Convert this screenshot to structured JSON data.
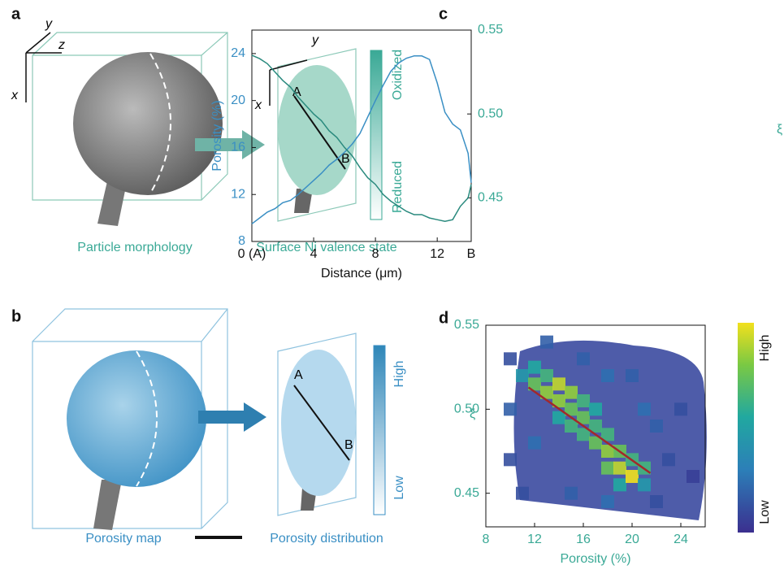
{
  "panels": {
    "a": {
      "label": "a",
      "box_axes": [
        "y",
        "z",
        "x"
      ],
      "plane_axes": [
        "y",
        "x"
      ],
      "points": [
        "A",
        "B"
      ],
      "scale": [
        "Oxidized",
        "Reduced"
      ],
      "captions": [
        "Particle morphology",
        "Surface Ni valence state"
      ]
    },
    "b": {
      "label": "b",
      "points": [
        "A",
        "B"
      ],
      "scale": [
        "High",
        "Low"
      ],
      "captions": [
        "Porosity map",
        "Porosity distribution"
      ]
    },
    "c": {
      "label": "c"
    },
    "d": {
      "label": "d"
    }
  },
  "chart_data": [
    {
      "type": "line",
      "xlabel": "Distance (μm)",
      "ylabel": "Porosity (%)",
      "y2label": "ξ",
      "x": [
        0,
        0.5,
        1,
        1.5,
        2,
        2.5,
        3,
        3.5,
        4,
        4.5,
        5,
        5.5,
        6,
        6.5,
        7,
        7.5,
        8,
        8.5,
        9,
        9.5,
        10,
        10.5,
        11,
        11.5,
        12,
        12.5,
        13,
        13.5,
        14,
        14.2
      ],
      "xlim": [
        0,
        14.2
      ],
      "xticks": [
        {
          "value": 0,
          "label": "0 (A)"
        },
        4,
        8,
        12,
        {
          "value": 14.2,
          "label": "B"
        }
      ],
      "ylim": [
        8,
        26
      ],
      "yticks": [
        8,
        12,
        16,
        20,
        24
      ],
      "y2lim": [
        0.424,
        0.55
      ],
      "y2ticks": [
        0.45,
        {
          "value": 0.5,
          "label": "0.50"
        },
        0.55
      ],
      "series": [
        {
          "color": "#3a8fc4",
          "values": [
            9.5,
            10,
            10.5,
            10.8,
            11.3,
            11.5,
            12,
            12.6,
            13.2,
            13.8,
            14.5,
            15,
            15.6,
            16.3,
            17.2,
            18.6,
            20,
            21.3,
            22.5,
            23.2,
            23.6,
            23.8,
            23.8,
            23.5,
            21.5,
            19,
            18,
            17.5,
            15.5,
            13
          ]
        },
        {
          "color": "#2a8a7e",
          "axis": "y2",
          "values": [
            0.535,
            0.533,
            0.53,
            0.525,
            0.52,
            0.516,
            0.51,
            0.505,
            0.5,
            0.496,
            0.49,
            0.486,
            0.48,
            0.475,
            0.468,
            0.462,
            0.458,
            0.452,
            0.448,
            0.445,
            0.442,
            0.44,
            0.44,
            0.438,
            0.437,
            0.436,
            0.437,
            0.445,
            0.45,
            0.458
          ]
        }
      ]
    },
    {
      "type": "scatter",
      "xlabel": "Porosity (%)",
      "ylabel": "ξ",
      "xlim": [
        8,
        26
      ],
      "xticks": [
        8,
        12,
        16,
        20,
        24
      ],
      "ylim": [
        0.43,
        0.55
      ],
      "yticks": [
        0.45,
        {
          "value": 0.5,
          "label": "0.50"
        },
        0.55
      ],
      "x": [
        11,
        12,
        12,
        13,
        13,
        14,
        14,
        14,
        15,
        15,
        15,
        16,
        16,
        16,
        17,
        17,
        17,
        18,
        18,
        18,
        19,
        19,
        19,
        20,
        20,
        21,
        21,
        10,
        10,
        11,
        12,
        13,
        16,
        20,
        22,
        23,
        24,
        25,
        15,
        18,
        22,
        10,
        18,
        21
      ],
      "y": [
        0.52,
        0.515,
        0.525,
        0.51,
        0.52,
        0.505,
        0.515,
        0.495,
        0.5,
        0.51,
        0.49,
        0.495,
        0.505,
        0.485,
        0.49,
        0.48,
        0.5,
        0.475,
        0.465,
        0.485,
        0.465,
        0.475,
        0.455,
        0.46,
        0.47,
        0.465,
        0.455,
        0.5,
        0.47,
        0.45,
        0.48,
        0.54,
        0.53,
        0.52,
        0.49,
        0.47,
        0.5,
        0.46,
        0.45,
        0.445,
        0.445,
        0.53,
        0.52,
        0.5
      ],
      "density": [
        0.4,
        0.7,
        0.5,
        0.8,
        0.6,
        0.8,
        0.9,
        0.5,
        0.7,
        0.8,
        0.6,
        0.7,
        0.6,
        0.6,
        0.6,
        0.7,
        0.5,
        0.8,
        0.7,
        0.6,
        0.9,
        0.7,
        0.5,
        1,
        0.6,
        0.6,
        0.4,
        0.15,
        0.1,
        0.1,
        0.2,
        0.15,
        0.15,
        0.15,
        0.15,
        0.1,
        0.1,
        0.05,
        0.15,
        0.2,
        0.1,
        0.1,
        0.2,
        0.2
      ],
      "colorbar_labels": [
        "High",
        "Low"
      ],
      "fit": {
        "color": "#a3282b",
        "x": [
          11.5,
          21.5
        ],
        "y": [
          0.513,
          0.462
        ]
      }
    }
  ]
}
